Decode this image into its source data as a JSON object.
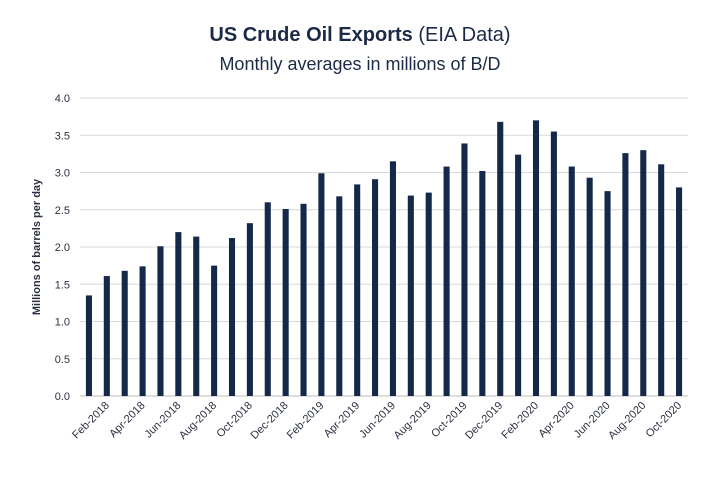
{
  "header": {
    "title": "US Crude Oil Exports",
    "title_suffix": "(EIA Data)",
    "subtitle": "Monthly averages in millions of B/D"
  },
  "colors": {
    "bar": "#14294a",
    "grid": "#d9d9d9",
    "text": "#2b3142"
  },
  "chart_data": {
    "type": "bar",
    "title": "US Crude Oil Exports (EIA Data)",
    "subtitle": "Monthly averages in millions of B/D",
    "xlabel": "",
    "ylabel": "Millions of barrels per day",
    "ylim": [
      0,
      4.0
    ],
    "yticks": [
      "0.0",
      "0.5",
      "1.0",
      "1.5",
      "2.0",
      "2.5",
      "3.0",
      "3.5",
      "4.0"
    ],
    "grid": true,
    "categories": [
      "Jan-2018",
      "Feb-2018",
      "Mar-2018",
      "Apr-2018",
      "May-2018",
      "Jun-2018",
      "Jul-2018",
      "Aug-2018",
      "Sep-2018",
      "Oct-2018",
      "Nov-2018",
      "Dec-2018",
      "Jan-2019",
      "Feb-2019",
      "Mar-2019",
      "Apr-2019",
      "May-2019",
      "Jun-2019",
      "Jul-2019",
      "Aug-2019",
      "Sep-2019",
      "Oct-2019",
      "Nov-2019",
      "Dec-2019",
      "Jan-2020",
      "Feb-2020",
      "Mar-2020",
      "Apr-2020",
      "May-2020",
      "Jun-2020",
      "Jul-2020",
      "Aug-2020",
      "Sep-2020",
      "Oct-2020"
    ],
    "xtick_labels": [
      "Feb-2018",
      "Apr-2018",
      "Jun-2018",
      "Aug-2018",
      "Oct-2018",
      "Dec-2018",
      "Feb-2019",
      "Apr-2019",
      "Jun-2019",
      "Aug-2019",
      "Oct-2019",
      "Dec-2019",
      "Feb-2020",
      "Apr-2020",
      "Jun-2020",
      "Aug-2020",
      "Oct-2020"
    ],
    "values": [
      1.35,
      1.61,
      1.68,
      1.74,
      2.01,
      2.2,
      2.14,
      1.75,
      2.12,
      2.32,
      2.6,
      2.51,
      2.58,
      2.99,
      2.68,
      2.84,
      2.91,
      3.15,
      2.69,
      2.73,
      3.08,
      3.39,
      3.02,
      3.68,
      3.24,
      3.7,
      3.55,
      3.08,
      2.93,
      2.75,
      3.26,
      3.3,
      3.11,
      2.8
    ]
  }
}
